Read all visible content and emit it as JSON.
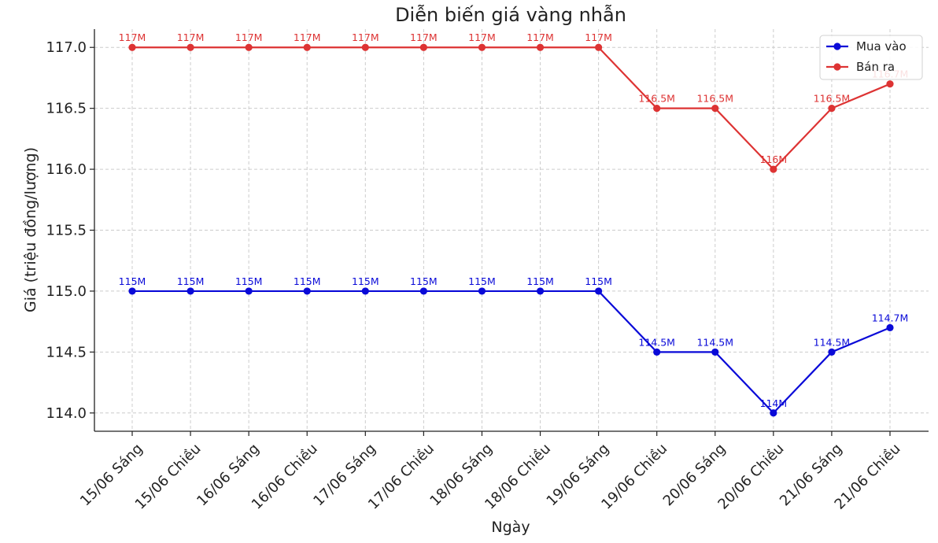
{
  "chart_data": {
    "type": "line",
    "title": "Diễn biến giá vàng nhẫn",
    "xlabel": "Ngày",
    "ylabel": "Giá (triệu đồng/lượng)",
    "ylim": [
      113.85,
      117.15
    ],
    "yticks": [
      "114.0",
      "114.5",
      "115.0",
      "115.5",
      "116.0",
      "116.5",
      "117.0"
    ],
    "ytick_values": [
      114.0,
      114.5,
      115.0,
      115.5,
      116.0,
      116.5,
      117.0
    ],
    "grid": true,
    "legend_position": "top-right",
    "categories": [
      "15/06 Sáng",
      "15/06 Chiều",
      "16/06 Sáng",
      "16/06 Chiều",
      "17/06 Sáng",
      "17/06 Chiều",
      "18/06 Sáng",
      "18/06 Chiều",
      "19/06 Sáng",
      "19/06 Chiều",
      "20/06 Sáng",
      "20/06 Chiều",
      "21/06 Sáng",
      "21/06 Chiều"
    ],
    "series": [
      {
        "name": "Mua vào",
        "color": "#0a0ad8",
        "values": [
          115.0,
          115.0,
          115.0,
          115.0,
          115.0,
          115.0,
          115.0,
          115.0,
          115.0,
          114.5,
          114.5,
          114.0,
          114.5,
          114.7
        ],
        "labels": [
          "115M",
          "115M",
          "115M",
          "115M",
          "115M",
          "115M",
          "115M",
          "115M",
          "115M",
          "114.5M",
          "114.5M",
          "114M",
          "114.5M",
          "114.7M"
        ]
      },
      {
        "name": "Bán ra",
        "color": "#dd3333",
        "values": [
          117.0,
          117.0,
          117.0,
          117.0,
          117.0,
          117.0,
          117.0,
          117.0,
          117.0,
          116.5,
          116.5,
          116.0,
          116.5,
          116.7
        ],
        "labels": [
          "117M",
          "117M",
          "117M",
          "117M",
          "117M",
          "117M",
          "117M",
          "117M",
          "117M",
          "116.5M",
          "116.5M",
          "116M",
          "116.5M",
          "116.7M"
        ]
      }
    ]
  }
}
